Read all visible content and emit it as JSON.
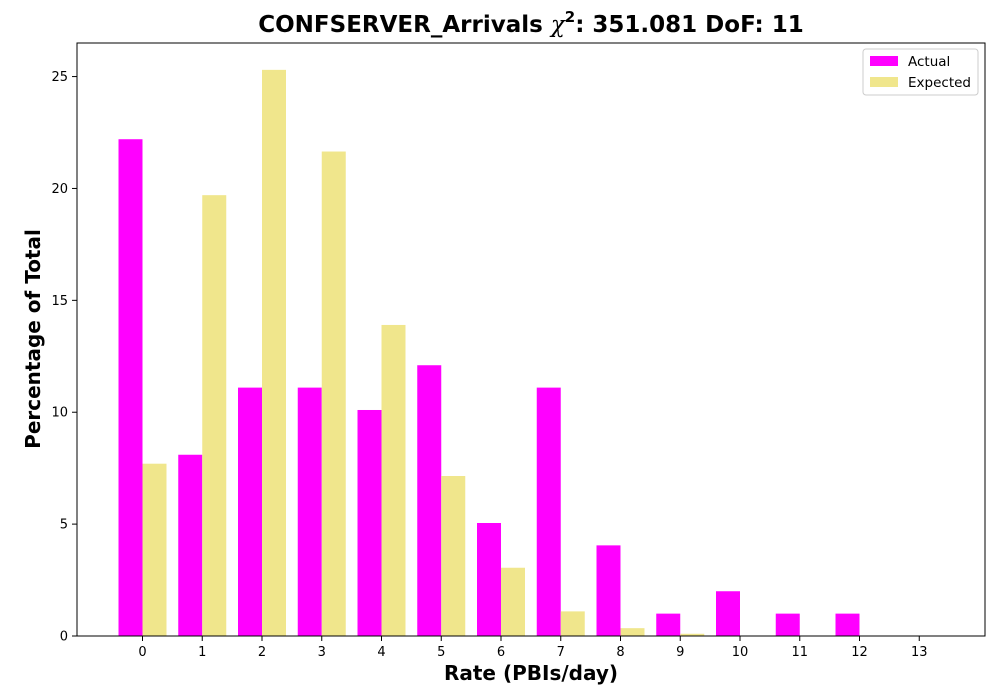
{
  "chart_data": {
    "type": "bar",
    "title_prefix": "CONFSERVER_Arrivals ",
    "title_chi": "χ",
    "title_sup": "2",
    "title_suffix": ": 351.081 DoF: 11",
    "xlabel": "Rate (PBIs/day)",
    "ylabel": "Percentage of Total",
    "categories": [
      "0",
      "1",
      "2",
      "3",
      "4",
      "5",
      "6",
      "7",
      "8",
      "9",
      "10",
      "11",
      "12",
      "13"
    ],
    "yticks": [
      "0",
      "5",
      "10",
      "15",
      "20",
      "25"
    ],
    "ylim": [
      0,
      26.5
    ],
    "grid": false,
    "legend_position": "top-right",
    "series": [
      {
        "name": "Actual",
        "color": "#ff00ff",
        "values": [
          22.2,
          8.1,
          11.1,
          11.1,
          10.1,
          12.1,
          5.05,
          11.1,
          4.05,
          1.0,
          2.0,
          1.0,
          1.0,
          0
        ]
      },
      {
        "name": "Expected",
        "color": "#f0e68c",
        "values": [
          7.7,
          19.7,
          25.3,
          21.65,
          13.9,
          7.15,
          3.05,
          1.1,
          0.35,
          0.1,
          0.02,
          0,
          0,
          0
        ]
      }
    ]
  }
}
